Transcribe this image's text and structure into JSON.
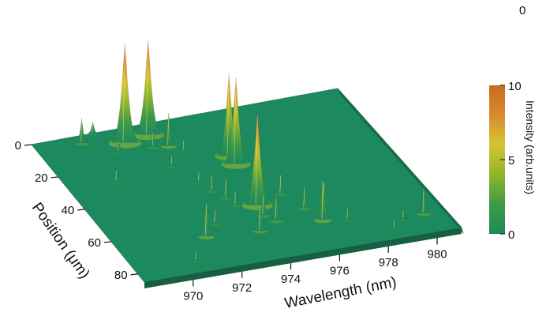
{
  "corner_label": "0",
  "chart_data": {
    "type": "surface",
    "xlabel": "Wavelength (nm)",
    "ylabel": "Position (μm)",
    "zlabel": "Intensity (arb.units)",
    "xlim": [
      968,
      981
    ],
    "ylim": [
      0,
      85
    ],
    "x_ticks": [
      970,
      972,
      974,
      976,
      978,
      980
    ],
    "y_ticks": [
      0,
      20,
      40,
      60,
      80
    ],
    "colorbar": {
      "min": 0,
      "max": 10,
      "ticks": [
        0,
        5,
        10
      ]
    },
    "colormap": [
      "#1c8a5e",
      "#3f9a46",
      "#8fb52e",
      "#d6c433",
      "#d98a2d",
      "#c86b20"
    ],
    "grid": false,
    "peaks": [
      {
        "x": 969.9,
        "y": 4,
        "z": 2.5
      },
      {
        "x": 970.0,
        "y": 28,
        "z": 1.3
      },
      {
        "x": 970.6,
        "y": 0,
        "z": 1.2
      },
      {
        "x": 971.5,
        "y": 8,
        "z": 10.0
      },
      {
        "x": 971.0,
        "y": 12,
        "z": 1.2
      },
      {
        "x": 972.4,
        "y": 13,
        "z": 1.6
      },
      {
        "x": 972.6,
        "y": 6,
        "z": 9.6
      },
      {
        "x": 973.0,
        "y": 14,
        "z": 3.3
      },
      {
        "x": 973.4,
        "y": 18,
        "z": 1.2
      },
      {
        "x": 974.9,
        "y": 25,
        "z": 8.3
      },
      {
        "x": 974.9,
        "y": 30,
        "z": 8.7
      },
      {
        "x": 972.5,
        "y": 25,
        "z": 1.2
      },
      {
        "x": 973.0,
        "y": 36,
        "z": 1.1
      },
      {
        "x": 973.2,
        "y": 42,
        "z": 1.6
      },
      {
        "x": 973.5,
        "y": 47,
        "z": 2.0
      },
      {
        "x": 973.6,
        "y": 52,
        "z": 1.5
      },
      {
        "x": 971.6,
        "y": 66,
        "z": 3.4
      },
      {
        "x": 972.3,
        "y": 60,
        "z": 1.5
      },
      {
        "x": 973.7,
        "y": 68,
        "z": 2.7
      },
      {
        "x": 974.4,
        "y": 54,
        "z": 9.2
      },
      {
        "x": 974.3,
        "y": 60,
        "z": 2.2
      },
      {
        "x": 974.6,
        "y": 64,
        "z": 2.5
      },
      {
        "x": 975.1,
        "y": 40,
        "z": 1.2
      },
      {
        "x": 975.3,
        "y": 36,
        "z": 1.2
      },
      {
        "x": 975.6,
        "y": 50,
        "z": 2.0
      },
      {
        "x": 976.3,
        "y": 68,
        "z": 4.1
      },
      {
        "x": 976.0,
        "y": 60,
        "z": 2.2
      },
      {
        "x": 977.0,
        "y": 57,
        "z": 1.7
      },
      {
        "x": 977.2,
        "y": 70,
        "z": 1.2
      },
      {
        "x": 978.6,
        "y": 79,
        "z": 1.0
      },
      {
        "x": 979.2,
        "y": 75,
        "z": 1.1
      },
      {
        "x": 980.1,
        "y": 74,
        "z": 2.6
      },
      {
        "x": 970.5,
        "y": 78,
        "z": 1.1
      }
    ]
  }
}
